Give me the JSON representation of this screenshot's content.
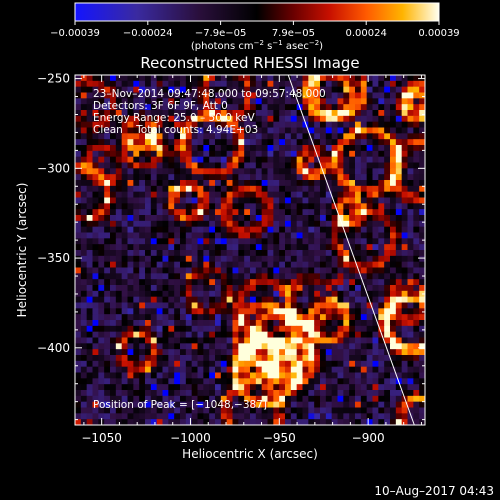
{
  "chart_data": {
    "type": "heatmap",
    "title": "Reconstructed RHESSI Image",
    "xlabel": "Heliocentric X (arcsec)",
    "ylabel": "Heliocentric Y (arcsec)",
    "xlim": [
      -1065,
      -868
    ],
    "ylim": [
      -443,
      -248
    ],
    "x_ticks": [
      -1050,
      -1000,
      -950,
      -900
    ],
    "y_ticks": [
      -250,
      -300,
      -350,
      -400
    ],
    "x_tick_labels": [
      "−1050",
      "−1000",
      "−950",
      "−900"
    ],
    "y_tick_labels": [
      "−250",
      "−300",
      "−350",
      "−400"
    ],
    "colorbar": {
      "range": [
        -0.00039,
        0.00039
      ],
      "tick_labels": [
        "−0.00039",
        "−0.00024",
        "−7.9e−05",
        "7.9e−05",
        "0.00024",
        "0.00039"
      ],
      "unit_prefix": "(photons cm",
      "unit_sup1": "−2",
      "unit_mid": " s",
      "unit_sup2": "−1",
      "unit_mid2": " asec",
      "unit_sup3": "−2",
      "unit_suffix": ")"
    },
    "annotations": [
      "23–Nov–2014 09:47:48.000 to 09:57:48.000",
      "Detectors: 3F 6F 9F, Att 0",
      "Energy Range: 25.0 – 50.0 keV",
      "Clean    Total counts: 4.94E+03"
    ],
    "peak_label": "Position of Peak = [−1048,−387]",
    "peak_position": [
      -1048,
      -387
    ],
    "limb_line": {
      "x": [
        -945,
        -874
      ],
      "y": [
        -248,
        -443
      ]
    },
    "colors": {
      "limb": "#ffffff",
      "background": "#000000"
    }
  },
  "footer_date": "10–Aug–2017 04:43"
}
